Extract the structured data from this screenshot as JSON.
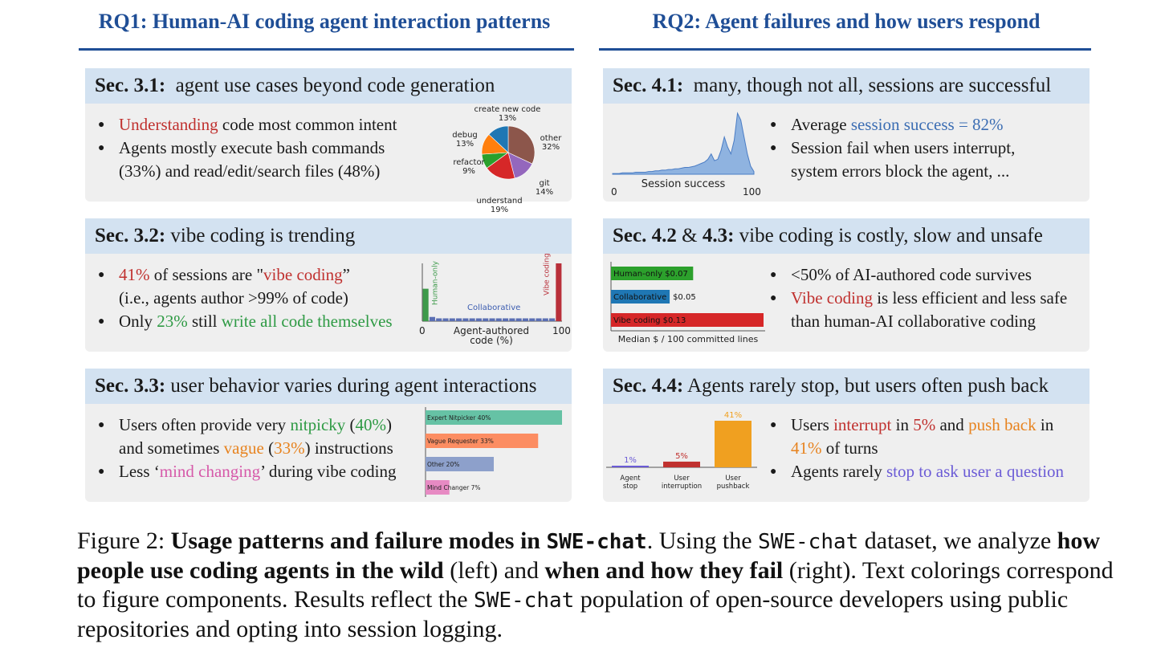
{
  "headers": {
    "rq1": "RQ1: Human-AI coding agent interaction patterns",
    "rq2": "RQ2: Agent failures and how users respond"
  },
  "p31": {
    "sec": "Sec. 3.1:",
    "title": "agent use cases beyond code generation",
    "b1_hl": "Understanding",
    "b1_rest": "code most common intent",
    "b2_l1": "Agents mostly execute bash commands",
    "b2_l2": "(33%) and read/edit/search files (48%)",
    "pie": [
      {
        "label": "other",
        "pct": "32%",
        "value": 32,
        "color": "#8c564b"
      },
      {
        "label": "git",
        "pct": "14%",
        "value": 14,
        "color": "#9467bd"
      },
      {
        "label": "understand",
        "pct": "19%",
        "value": 19,
        "color": "#d62728"
      },
      {
        "label": "refactor",
        "pct": "9%",
        "value": 9,
        "color": "#2ca02c"
      },
      {
        "label": "debug",
        "pct": "13%",
        "value": 13,
        "color": "#ff7f0e"
      },
      {
        "label": "create new code",
        "pct": "13%",
        "value": 13,
        "color": "#1f77b4"
      }
    ]
  },
  "p32": {
    "sec": "Sec. 3.2:",
    "title": "vibe coding is trending",
    "b1_pct": "41%",
    "b1_mid": "of sessions are \"",
    "b1_hl": "vibe coding",
    "b1_end": "”",
    "b1_l2": "(i.e., agents author >99% of code)",
    "b2_pre": "Only",
    "b2_pct": "23%",
    "b2_mid": "still",
    "b2_hl": "write all code themselves",
    "hist_values": [
      23,
      3,
      2,
      2,
      2,
      2,
      2,
      2,
      2,
      2,
      2,
      2,
      2,
      2,
      2,
      2,
      2,
      2,
      2,
      2,
      41
    ],
    "hist_labels": {
      "human": "Human-only",
      "collab": "Collaborative",
      "vibe": "Vibe coding"
    },
    "xmin": "0",
    "xmax": "100",
    "xlabel1": "Agent-authored",
    "xlabel2": "code (%)"
  },
  "p33": {
    "sec": "Sec. 3.3:",
    "title": "user behavior varies during agent interactions",
    "b1_pre": "Users often provide very",
    "b1_hl": "nitpicky",
    "b1_open": "(",
    "b1_pct": "40%",
    "b1_close": ")",
    "b1_l2_pre": "and sometimes",
    "b1_l2_hl": "vague",
    "b1_l2_pct": "33%",
    "b2_pre": "Less ‘",
    "b2_hl": "mind changing",
    "b2_end": "’ during vibe coding",
    "bars": [
      {
        "label": "Expert Nitpicker 40%",
        "value": 40,
        "color": "#66c2a5"
      },
      {
        "label": "Vague Requester 33%",
        "value": 33,
        "color": "#fc8d62"
      },
      {
        "label": "Other 20%",
        "value": 20,
        "color": "#8da0cb"
      },
      {
        "label": "Mind Changer 7%",
        "value": 7,
        "color": "#e78ac3"
      }
    ]
  },
  "p41": {
    "sec": "Sec. 4.1:",
    "title": "many, though not all, sessions are successful",
    "b1_pre": "Average",
    "b1_hl": "session success = 82%",
    "b2_l1": "Session fail when users interrupt,",
    "b2_l2": "system errors block the agent, ...",
    "xlabel": "Session success",
    "xmin": "0",
    "xmax": "100",
    "density": [
      1,
      1,
      1,
      2,
      2,
      2,
      2,
      3,
      3,
      3,
      3,
      4,
      4,
      5,
      5,
      6,
      6,
      7,
      7,
      8,
      8,
      9,
      10,
      10,
      11,
      12,
      14,
      16,
      18,
      22,
      30,
      20,
      22,
      35,
      55,
      40,
      30,
      50,
      90,
      80,
      55,
      30,
      12,
      4
    ]
  },
  "p4223": {
    "sec1": "Sec. 4.2",
    "amp": "&",
    "sec2": "4.3:",
    "title": "vibe coding is costly, slow and unsafe",
    "b1": "<50% of AI-authored code survives",
    "b2_hl": "Vibe coding",
    "b2_rest": "is less efficient and less safe",
    "b2_l2": "than human-AI collaborative coding",
    "bars": [
      {
        "label": "Human-only $0.07",
        "value": 0.07,
        "color": "#2ca02c"
      },
      {
        "label": "Collaborative",
        "value": 0.05,
        "color": "#1f77b4",
        "outside": "$0.05"
      },
      {
        "label": "Vibe coding $0.13",
        "value": 0.13,
        "color": "#d62728"
      }
    ],
    "xlabel": "Median $ / 100 committed lines"
  },
  "p44": {
    "sec": "Sec. 4.4:",
    "title": "Agents rarely stop, but users often push back",
    "b1_pre": "Users",
    "b1_hl1": "interrupt",
    "b1_mid": "in",
    "b1_pct1": "5%",
    "b1_and": "and",
    "b1_hl2": "push back",
    "b1_in": "in",
    "b1_l2_pct": "41%",
    "b1_l2_rest": "of turns",
    "b2_pre": "Agents rarely",
    "b2_hl": "stop to ask user a question",
    "bars": [
      {
        "label1": "Agent",
        "label2": "stop",
        "pct": "1%",
        "value": 1,
        "color": "#6b5bd6"
      },
      {
        "label1": "User",
        "label2": "interruption",
        "pct": "5%",
        "value": 5,
        "color": "#c0312f"
      },
      {
        "label1": "User",
        "label2": "pushback",
        "pct": "41%",
        "value": 41,
        "color": "#f0a020"
      }
    ]
  },
  "caption": {
    "fig": "Figure 2:",
    "bold1": "Usage patterns and failure modes in",
    "mono1": "SWE-chat",
    "t1": ". Using the",
    "mono2": "SWE-chat",
    "t2": "dataset, we analyze",
    "bold2": "how people use coding agents in the wild",
    "t3": "(left) and",
    "bold3": "when and how they fail",
    "t4": "(right). Text colorings correspond to figure components. Results reflect the",
    "mono3": "SWE-chat",
    "t5": "population of open-source developers using public repositories and opting into session logging."
  }
}
